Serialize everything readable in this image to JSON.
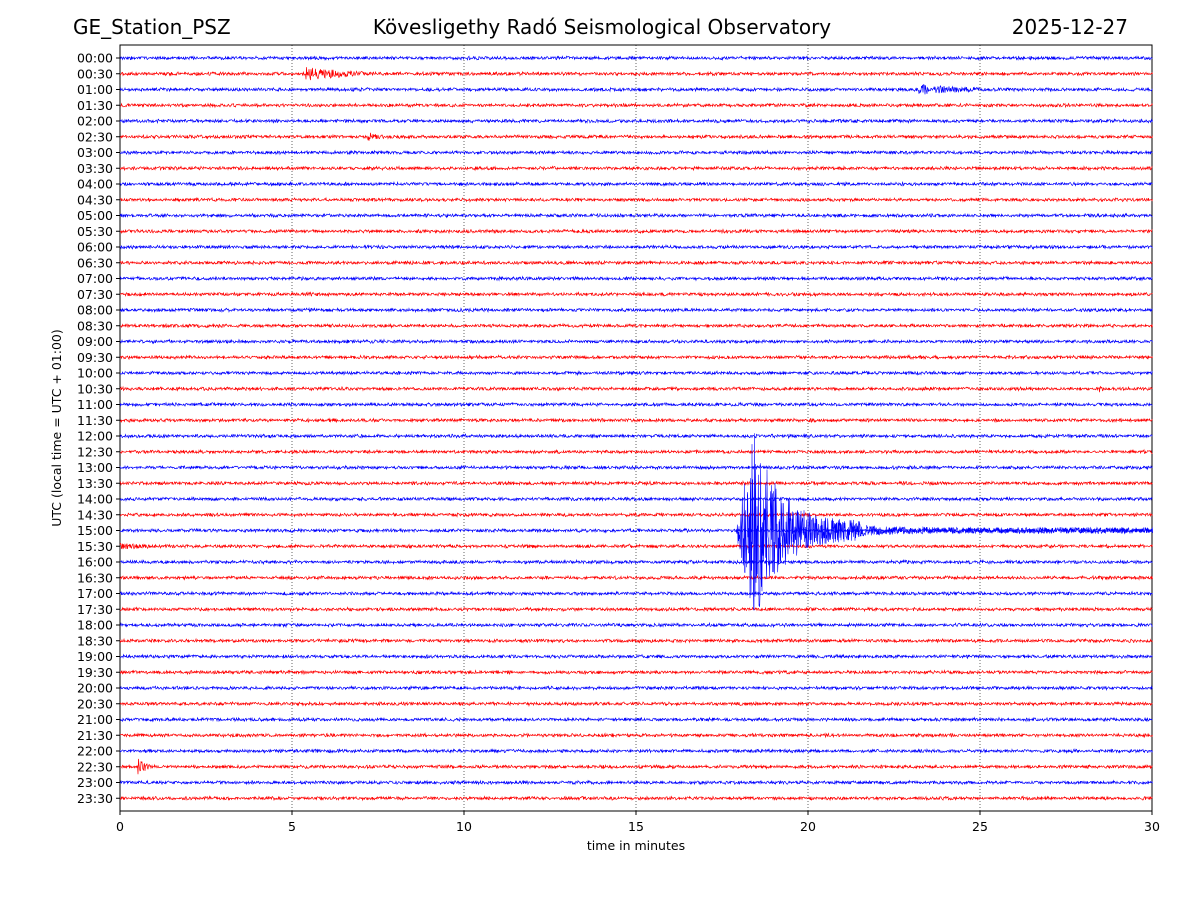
{
  "header": {
    "station": "GE_Station_PSZ",
    "title": "Kövesligethy Radó Seismological Observatory",
    "date": "2025-12-27"
  },
  "chart_data": {
    "type": "line",
    "title": "Kövesligethy Radó Seismological Observatory",
    "xlabel": "time in minutes",
    "ylabel": "UTC (local time = UTC + 01:00)",
    "xlim": [
      0,
      30
    ],
    "x_ticks": [
      0,
      5,
      10,
      15,
      20,
      25,
      30
    ],
    "grid": "vertical dotted lines at x ticks",
    "row_labels": [
      "00:00",
      "00:30",
      "01:00",
      "01:30",
      "02:00",
      "02:30",
      "03:00",
      "03:30",
      "04:00",
      "04:30",
      "05:00",
      "05:30",
      "06:00",
      "06:30",
      "07:00",
      "07:30",
      "08:00",
      "08:30",
      "09:00",
      "09:30",
      "10:00",
      "10:30",
      "11:00",
      "11:30",
      "12:00",
      "12:30",
      "13:00",
      "13:30",
      "14:00",
      "14:30",
      "15:00",
      "15:30",
      "16:00",
      "16:30",
      "17:00",
      "17:30",
      "18:00",
      "18:30",
      "19:00",
      "19:30",
      "20:00",
      "20:30",
      "21:00",
      "21:30",
      "22:00",
      "22:30",
      "23:00",
      "23:30"
    ],
    "trace_colors": [
      "#0000ff",
      "#ff0000"
    ],
    "noise_amplitude_rows": 0.12,
    "events": [
      {
        "row": "00:30",
        "start_min": 5.4,
        "duration_min": 5.2,
        "amplitude_rows": 0.45,
        "decay_min": 1.4,
        "color": "#ff0000"
      },
      {
        "row": "01:00",
        "start_min": 23.2,
        "duration_min": 5.0,
        "amplitude_rows": 0.35,
        "decay_min": 1.8,
        "color": "#0000ff"
      },
      {
        "row": "02:30",
        "start_min": 7.2,
        "duration_min": 1.3,
        "amplitude_rows": 0.3,
        "decay_min": 0.5,
        "color": "#ff0000"
      },
      {
        "row": "10:30",
        "start_min": 28.4,
        "duration_min": 0.4,
        "amplitude_rows": 0.35,
        "decay_min": 0.15,
        "color": "#ff0000"
      },
      {
        "row": "15:30",
        "start_min": 0.0,
        "duration_min": 2.3,
        "amplitude_rows": 0.2,
        "decay_min": 2.0,
        "color": "#ff0000"
      },
      {
        "row": "15:30",
        "start_min": 14.7,
        "duration_min": 0.5,
        "amplitude_rows": 0.22,
        "decay_min": 0.3,
        "color": "#ff0000"
      },
      {
        "row": "22:30",
        "start_min": 0.5,
        "duration_min": 0.9,
        "amplitude_rows": 0.65,
        "decay_min": 0.25,
        "color": "#ff0000"
      },
      {
        "row": "15:00",
        "start_min": 17.9,
        "duration_min": 12.1,
        "amplitude_rows": 6.5,
        "decay_min": 0.9,
        "color": "#0000ff",
        "type": "main-quake"
      }
    ]
  }
}
